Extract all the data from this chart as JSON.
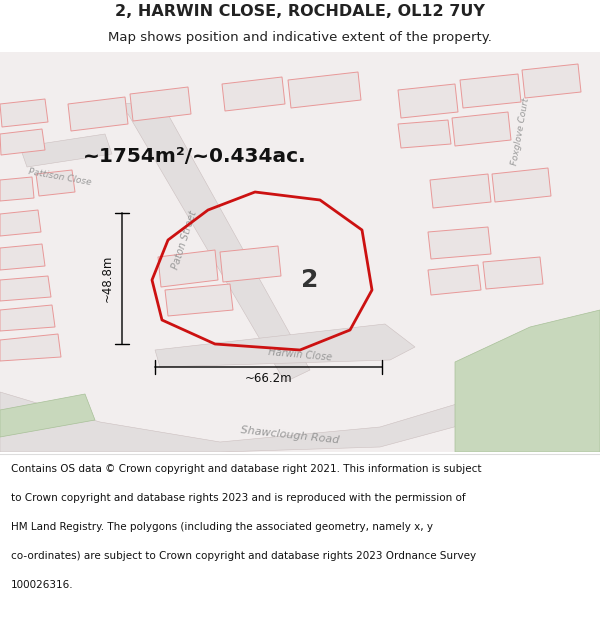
{
  "title_line1": "2, HARWIN CLOSE, ROCHDALE, OL12 7UY",
  "title_line2": "Map shows position and indicative extent of the property.",
  "area_text": "~1754m²/~0.434ac.",
  "label_number": "2",
  "dim_width": "~66.2m",
  "dim_height": "~48.8m",
  "footer_lines": [
    "Contains OS data © Crown copyright and database right 2021. This information is subject",
    "to Crown copyright and database rights 2023 and is reproduced with the permission of",
    "HM Land Registry. The polygons (including the associated geometry, namely x, y",
    "co-ordinates) are subject to Crown copyright and database rights 2023 Ordnance Survey",
    "100026316."
  ],
  "map_bg": "#f2eeee",
  "bldg_fill": "#eae4e4",
  "bldg_stroke": "#e89898",
  "road_fill": "#e6e2e2",
  "green_fill": "#c8d8bc",
  "green_stroke": "#a8c098",
  "highlight_stroke": "#cc1111",
  "text_color": "#222222",
  "road_text_color": "#999999",
  "footer_bg": "#ffffff",
  "title_bg": "#ffffff",
  "title1_fontsize": 11.5,
  "title2_fontsize": 9.5,
  "area_fontsize": 14.5,
  "label_fontsize": 18,
  "dim_fontsize": 8.5,
  "footer_fontsize": 7.5,
  "road_label_fontsize": 7.0
}
